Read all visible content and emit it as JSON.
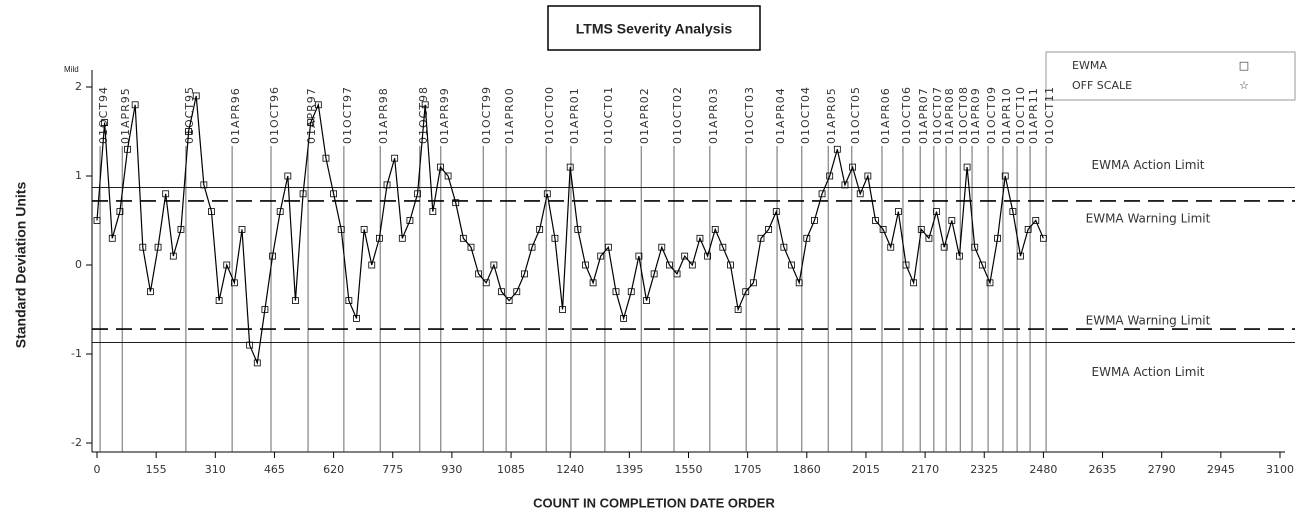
{
  "chart_data": {
    "type": "line",
    "title": "LTMS Severity Analysis",
    "y_label": "Standard Deviation Units",
    "x_label": "COUNT IN COMPLETION DATE ORDER",
    "y_corner_label": "Mild",
    "xlim": [
      0,
      3100
    ],
    "ylim": [
      -2,
      2
    ],
    "xticks": [
      0,
      155,
      310,
      465,
      620,
      775,
      930,
      1085,
      1240,
      1395,
      1550,
      1705,
      1860,
      2015,
      2170,
      2325,
      2480,
      2635,
      2790,
      2945,
      3100
    ],
    "yticks": [
      -2,
      -1,
      0,
      1,
      2
    ],
    "legend": [
      {
        "name": "EWMA",
        "symbol": "□"
      },
      {
        "name": "OFF SCALE",
        "symbol": "☆"
      }
    ],
    "limits": [
      {
        "label": "EWMA Action Limit",
        "value": 0.87,
        "style": "solid"
      },
      {
        "label": "EWMA Warning Limit",
        "value": 0.72,
        "style": "dashed"
      },
      {
        "label": "EWMA Warning Limit",
        "value": -0.72,
        "style": "dashed"
      },
      {
        "label": "EWMA Action Limit",
        "value": -0.87,
        "style": "solid"
      }
    ],
    "date_lines": [
      {
        "label": "01OCT94",
        "x": 8
      },
      {
        "label": "01APR95",
        "x": 66
      },
      {
        "label": "01OCT95",
        "x": 233
      },
      {
        "label": "01APR96",
        "x": 354
      },
      {
        "label": "01OCT96",
        "x": 456
      },
      {
        "label": "01APR97",
        "x": 553
      },
      {
        "label": "01OCT97",
        "x": 647
      },
      {
        "label": "01APR98",
        "x": 742
      },
      {
        "label": "01OCT98",
        "x": 846
      },
      {
        "label": "01APR99",
        "x": 901
      },
      {
        "label": "01OCT99",
        "x": 1012
      },
      {
        "label": "01APR00",
        "x": 1072
      },
      {
        "label": "01OCT00",
        "x": 1177
      },
      {
        "label": "01APR01",
        "x": 1242
      },
      {
        "label": "01OCT01",
        "x": 1331
      },
      {
        "label": "01APR02",
        "x": 1426
      },
      {
        "label": "01OCT02",
        "x": 1512
      },
      {
        "label": "01APR03",
        "x": 1606
      },
      {
        "label": "01OCT03",
        "x": 1701
      },
      {
        "label": "01APR04",
        "x": 1782
      },
      {
        "label": "01OCT04",
        "x": 1847
      },
      {
        "label": "01APR05",
        "x": 1916
      },
      {
        "label": "01OCT05",
        "x": 1978
      },
      {
        "label": "01APR06",
        "x": 2057
      },
      {
        "label": "01OCT06",
        "x": 2112
      },
      {
        "label": "01APR07",
        "x": 2157
      },
      {
        "label": "01OCT07",
        "x": 2193
      },
      {
        "label": "01APR08",
        "x": 2225
      },
      {
        "label": "01OCT08",
        "x": 2262
      },
      {
        "label": "01APR09",
        "x": 2293
      },
      {
        "label": "01OCT09",
        "x": 2335
      },
      {
        "label": "01APR10",
        "x": 2374
      },
      {
        "label": "01OCT10",
        "x": 2411
      },
      {
        "label": "01APR11",
        "x": 2445
      },
      {
        "label": "01OCT11",
        "x": 2487
      }
    ],
    "series": [
      {
        "name": "EWMA",
        "color": "#000000",
        "x": [
          0,
          20,
          40,
          60,
          80,
          100,
          120,
          140,
          160,
          180,
          200,
          220,
          240,
          260,
          280,
          300,
          320,
          340,
          360,
          380,
          400,
          420,
          440,
          460,
          480,
          500,
          520,
          540,
          560,
          580,
          600,
          620,
          640,
          660,
          680,
          700,
          720,
          740,
          760,
          780,
          800,
          820,
          840,
          860,
          880,
          900,
          920,
          940,
          960,
          980,
          1000,
          1020,
          1040,
          1060,
          1080,
          1100,
          1120,
          1140,
          1160,
          1180,
          1200,
          1220,
          1240,
          1260,
          1280,
          1300,
          1320,
          1340,
          1360,
          1380,
          1400,
          1420,
          1440,
          1460,
          1480,
          1500,
          1520,
          1540,
          1560,
          1580,
          1600,
          1620,
          1640,
          1660,
          1680,
          1700,
          1720,
          1740,
          1760,
          1780,
          1800,
          1820,
          1840,
          1860,
          1880,
          1900,
          1920,
          1940,
          1960,
          1980,
          2000,
          2020,
          2040,
          2060,
          2080,
          2100,
          2120,
          2140,
          2160,
          2180,
          2200,
          2220,
          2240,
          2260,
          2280,
          2300,
          2320,
          2340,
          2360,
          2380,
          2400,
          2420,
          2440,
          2460,
          2480
        ],
        "values": [
          0.5,
          1.6,
          0.3,
          0.6,
          1.3,
          1.8,
          0.2,
          -0.3,
          0.2,
          0.8,
          0.1,
          0.4,
          1.5,
          1.9,
          0.9,
          0.6,
          -0.4,
          0.0,
          -0.2,
          0.4,
          -0.9,
          -1.1,
          -0.5,
          0.1,
          0.6,
          1.0,
          -0.4,
          0.8,
          1.6,
          1.8,
          1.2,
          0.8,
          0.4,
          -0.4,
          -0.6,
          0.4,
          0.0,
          0.3,
          0.9,
          1.2,
          0.3,
          0.5,
          0.8,
          1.8,
          0.6,
          1.1,
          1.0,
          0.7,
          0.3,
          0.2,
          -0.1,
          -0.2,
          0.0,
          -0.3,
          -0.4,
          -0.3,
          -0.1,
          0.2,
          0.4,
          0.8,
          0.3,
          -0.5,
          1.1,
          0.4,
          0.0,
          -0.2,
          0.1,
          0.2,
          -0.3,
          -0.6,
          -0.3,
          0.1,
          -0.4,
          -0.1,
          0.2,
          0.0,
          -0.1,
          0.1,
          0.0,
          0.3,
          0.1,
          0.4,
          0.2,
          0.0,
          -0.5,
          -0.3,
          -0.2,
          0.3,
          0.4,
          0.6,
          0.2,
          0.0,
          -0.2,
          0.3,
          0.5,
          0.8,
          1.0,
          1.3,
          0.9,
          1.1,
          0.8,
          1.0,
          0.5,
          0.4,
          0.2,
          0.6,
          0.0,
          -0.2,
          0.4,
          0.3,
          0.6,
          0.2,
          0.5,
          0.1,
          1.1,
          0.2,
          0.0,
          -0.2,
          0.3,
          1.0,
          0.6,
          0.1,
          0.4,
          0.5,
          0.3
        ]
      }
    ]
  }
}
